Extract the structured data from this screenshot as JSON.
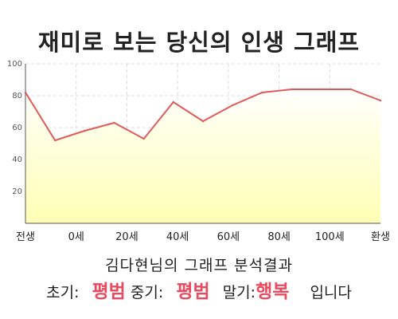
{
  "title": "재미로 보는 당신의 인생 그래프",
  "subtitle": "김다현님의 그래프 분석결과",
  "result": {
    "early_label": "초기:",
    "early_value": "평범",
    "middle_label": "중기:",
    "middle_value": "평범",
    "late_label": "말기:",
    "late_value": "행복",
    "ending": "입니다"
  },
  "colors": {
    "line": "#e05a5a",
    "fill": "#ffffc0",
    "highlight": "#e84a5f"
  },
  "chart_data": {
    "type": "area",
    "categories": [
      "전생",
      "0세",
      "20세",
      "40세",
      "60세",
      "80세",
      "100세",
      "환생"
    ],
    "x": [
      -10,
      0,
      10,
      20,
      30,
      40,
      50,
      60,
      70,
      80,
      90,
      100,
      110
    ],
    "values": [
      82,
      52,
      58,
      63,
      53,
      76,
      64,
      74,
      82,
      84,
      84,
      84,
      77
    ],
    "yticks": [
      "20",
      "40",
      "60",
      "80",
      "100"
    ],
    "ylim": [
      0,
      100
    ],
    "grid": true
  }
}
